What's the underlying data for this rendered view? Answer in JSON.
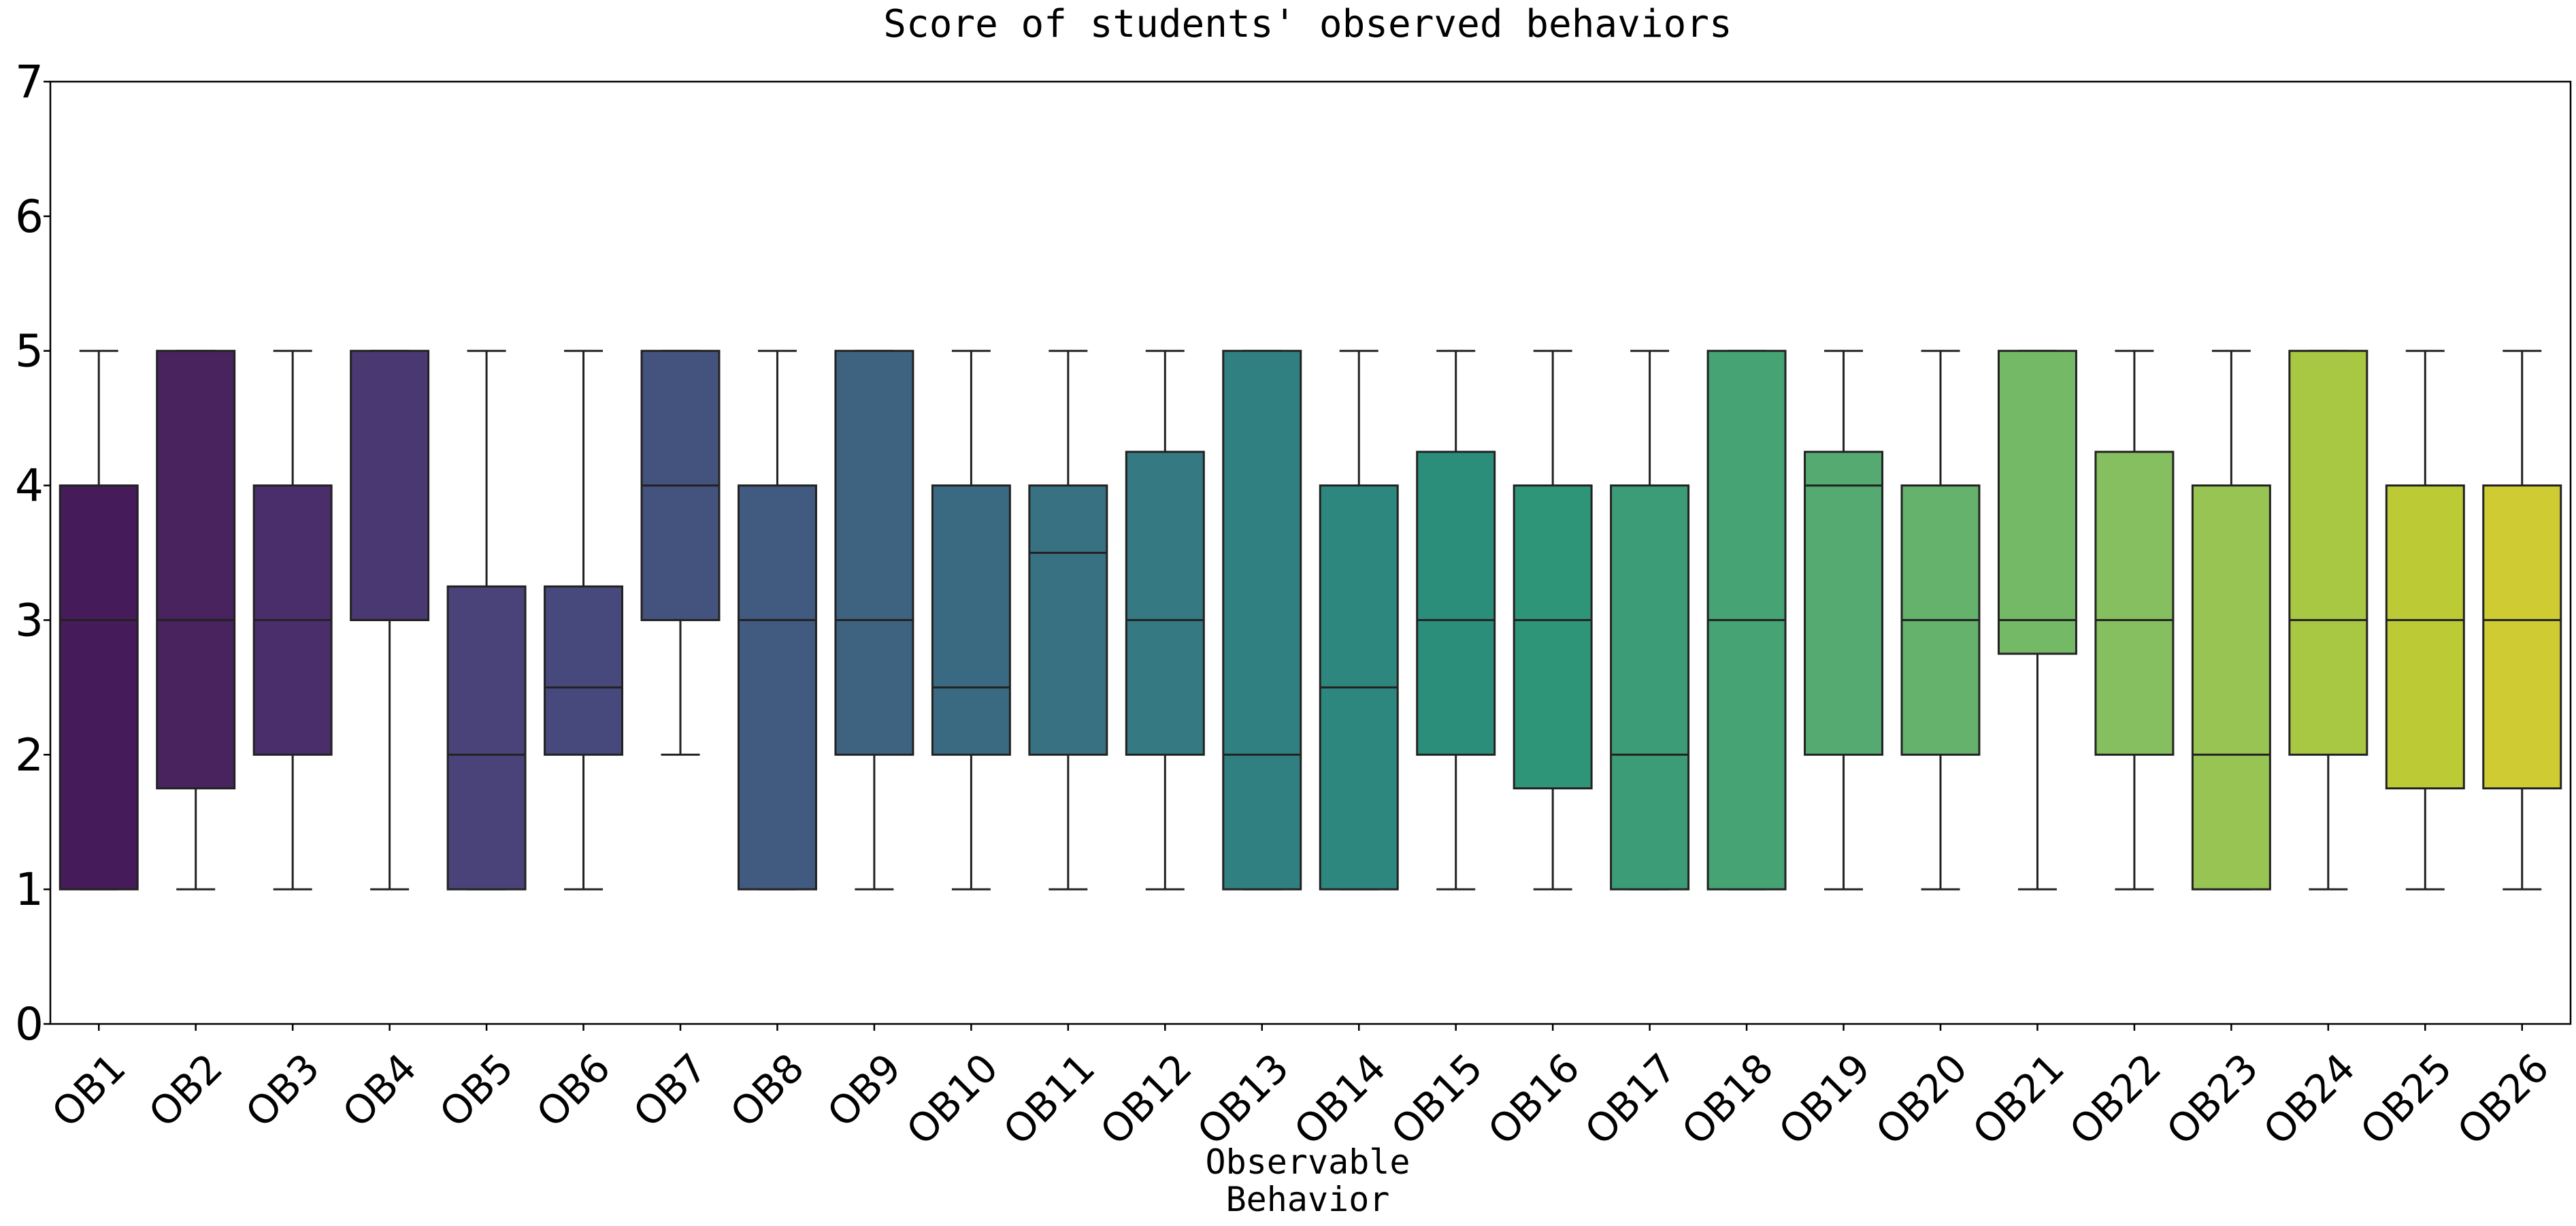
{
  "chart_data": {
    "type": "box",
    "title": "Score of students' observed behaviors",
    "xlabel_lines": [
      "Observable",
      "Behavior"
    ],
    "ylabel": "",
    "ylim": [
      0,
      7
    ],
    "yticks": [
      0,
      1,
      2,
      3,
      4,
      5,
      6,
      7
    ],
    "grid": false,
    "legend": "none",
    "categories": [
      "OB1",
      "OB2",
      "OB3",
      "OB4",
      "OB5",
      "OB6",
      "OB7",
      "OB8",
      "OB9",
      "OB10",
      "OB11",
      "OB12",
      "OB13",
      "OB14",
      "OB15",
      "OB16",
      "OB17",
      "OB18",
      "OB19",
      "OB20",
      "OB21",
      "OB22",
      "OB23",
      "OB24",
      "OB25",
      "OB26"
    ],
    "boxes": [
      {
        "whisker_low": 1,
        "q1": 1,
        "median": 3,
        "q3": 4,
        "whisker_high": 5,
        "color": "#461B59"
      },
      {
        "whisker_low": 1,
        "q1": 1.75,
        "median": 3,
        "q3": 5,
        "whisker_high": 5,
        "color": "#48235E"
      },
      {
        "whisker_low": 1,
        "q1": 2,
        "median": 3,
        "q3": 4,
        "whisker_high": 5,
        "color": "#4A2E6C"
      },
      {
        "whisker_low": 1,
        "q1": 3,
        "median": 3,
        "q3": 5,
        "whisker_high": 5,
        "color": "#4A3872"
      },
      {
        "whisker_low": 1,
        "q1": 1,
        "median": 2,
        "q3": 3.25,
        "whisker_high": 5,
        "color": "#4A437A"
      },
      {
        "whisker_low": 1,
        "q1": 2,
        "median": 2.5,
        "q3": 3.25,
        "whisker_high": 5,
        "color": "#47497C"
      },
      {
        "whisker_low": 2,
        "q1": 3,
        "median": 4,
        "q3": 5,
        "whisker_high": 5,
        "color": "#44527E"
      },
      {
        "whisker_low": 1,
        "q1": 1,
        "median": 3,
        "q3": 4,
        "whisker_high": 5,
        "color": "#415A80"
      },
      {
        "whisker_low": 1,
        "q1": 2,
        "median": 3,
        "q3": 5,
        "whisker_high": 5,
        "color": "#3E6381"
      },
      {
        "whisker_low": 1,
        "q1": 2,
        "median": 2.5,
        "q3": 4,
        "whisker_high": 5,
        "color": "#3A6A82"
      },
      {
        "whisker_low": 1,
        "q1": 2,
        "median": 3.5,
        "q3": 4,
        "whisker_high": 5,
        "color": "#387182"
      },
      {
        "whisker_low": 1,
        "q1": 2,
        "median": 3,
        "q3": 4.25,
        "whisker_high": 5,
        "color": "#357A82"
      },
      {
        "whisker_low": 1,
        "q1": 1,
        "median": 2,
        "q3": 5,
        "whisker_high": 5,
        "color": "#318081"
      },
      {
        "whisker_low": 1,
        "q1": 1,
        "median": 2.5,
        "q3": 4,
        "whisker_high": 5,
        "color": "#2E877F"
      },
      {
        "whisker_low": 1,
        "q1": 2,
        "median": 3,
        "q3": 4.25,
        "whisker_high": 5,
        "color": "#2B8E7B"
      },
      {
        "whisker_low": 1,
        "q1": 1.75,
        "median": 3,
        "q3": 4,
        "whisker_high": 5,
        "color": "#2F9579"
      },
      {
        "whisker_low": 1,
        "q1": 1,
        "median": 2,
        "q3": 4,
        "whisker_high": 5,
        "color": "#3B9C77"
      },
      {
        "whisker_low": 1,
        "q1": 1,
        "median": 3,
        "q3": 5,
        "whisker_high": 5,
        "color": "#45A374"
      },
      {
        "whisker_low": 1,
        "q1": 2,
        "median": 4,
        "q3": 4.25,
        "whisker_high": 5,
        "color": "#54AA70"
      },
      {
        "whisker_low": 1,
        "q1": 2,
        "median": 3,
        "q3": 4,
        "whisker_high": 5,
        "color": "#64B26B"
      },
      {
        "whisker_low": 1,
        "q1": 2.75,
        "median": 3,
        "q3": 5,
        "whisker_high": 5,
        "color": "#74B966"
      },
      {
        "whisker_low": 1,
        "q1": 2,
        "median": 3,
        "q3": 4.25,
        "whisker_high": 5,
        "color": "#86BF5F"
      },
      {
        "whisker_low": 1,
        "q1": 1,
        "median": 2,
        "q3": 4,
        "whisker_high": 5,
        "color": "#98C453"
      },
      {
        "whisker_low": 1,
        "q1": 2,
        "median": 3,
        "q3": 5,
        "whisker_high": 5,
        "color": "#A8C742"
      },
      {
        "whisker_low": 1,
        "q1": 1.75,
        "median": 3,
        "q3": 4,
        "whisker_high": 5,
        "color": "#BBCA35"
      },
      {
        "whisker_low": 1,
        "q1": 1.75,
        "median": 3,
        "q3": 4,
        "whisker_high": 5,
        "color": "#CFCB32"
      }
    ]
  }
}
